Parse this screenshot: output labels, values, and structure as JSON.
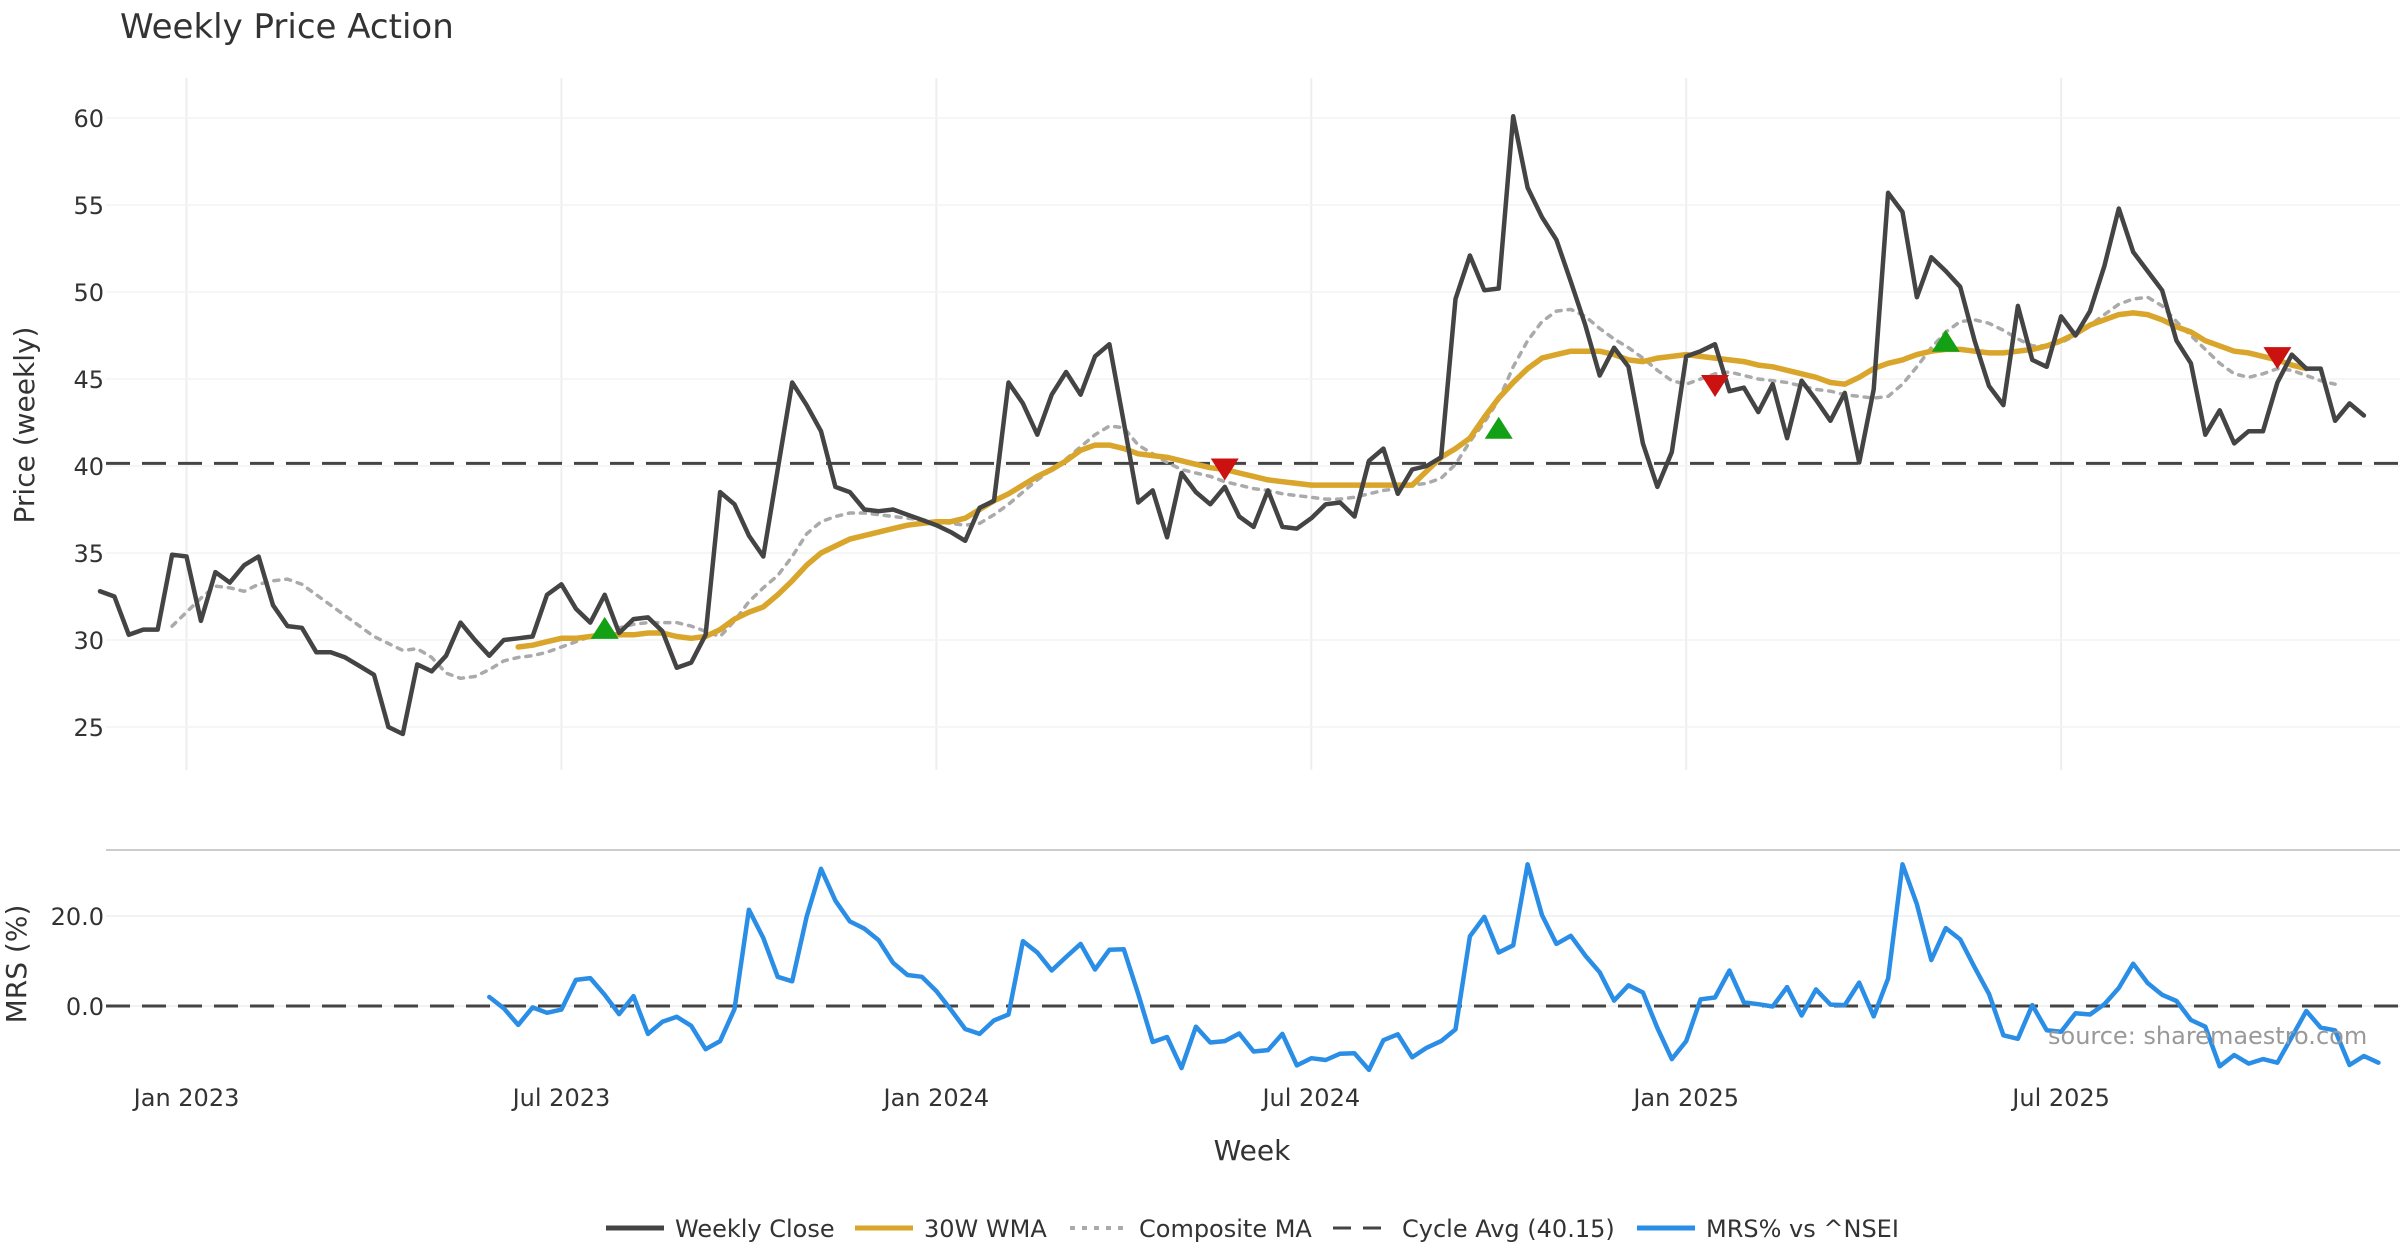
{
  "chart_data": {
    "type": "line",
    "title": "Weekly Price Action",
    "xlabel": "Week",
    "source": "source: sharemaestro.com",
    "x_ticks": [
      "Jan 2023",
      "Jul 2023",
      "Jan 2024",
      "Jul 2024",
      "Jan 2025",
      "Jul 2025"
    ],
    "panels": {
      "price": {
        "ylabel": "Price (weekly)",
        "ylim": [
          22.5,
          62
        ],
        "yticks": [
          "25",
          "30",
          "35",
          "40",
          "45",
          "50",
          "55",
          "60"
        ],
        "cycle_avg": 40.15,
        "series": [
          {
            "name": "Weekly Close",
            "color": "#444444",
            "start_week": 0,
            "values": [
              32.8,
              32.5,
              30.3,
              30.6,
              30.6,
              34.9,
              34.8,
              31.1,
              33.9,
              33.3,
              34.3,
              34.8,
              32.0,
              30.8,
              30.7,
              29.3,
              29.3,
              29.0,
              28.5,
              28.0,
              25.0,
              24.6,
              28.6,
              28.2,
              29.1,
              31.0,
              30.0,
              29.1,
              30.0,
              30.1,
              30.2,
              32.6,
              33.2,
              31.8,
              31.0,
              32.6,
              30.4,
              31.2,
              31.3,
              30.5,
              28.4,
              28.7,
              30.3,
              38.5,
              37.8,
              36.0,
              34.8,
              39.8,
              44.8,
              43.5,
              42.0,
              38.8,
              38.5,
              37.5,
              37.4,
              37.5,
              37.2,
              36.9,
              36.6,
              36.2,
              35.7,
              37.6,
              38.0,
              44.8,
              43.6,
              41.8,
              44.1,
              45.4,
              44.1,
              46.3,
              47.0,
              42.5,
              37.9,
              38.6,
              35.9,
              39.6,
              38.5,
              37.8,
              38.8,
              37.1,
              36.5,
              38.6,
              36.5,
              36.4,
              37.0,
              37.8,
              37.9,
              37.1,
              40.3,
              41.0,
              38.4,
              39.8,
              40.0,
              40.5,
              49.6,
              52.1,
              50.1,
              50.2,
              60.1,
              56.0,
              54.3,
              53.0,
              50.6,
              48.1,
              45.2,
              46.8,
              45.7,
              41.3,
              38.8,
              40.8,
              46.3,
              46.6,
              47.0,
              44.3,
              44.5,
              43.1,
              44.7,
              41.6,
              44.9,
              43.8,
              42.6,
              44.2,
              40.2,
              44.4,
              55.7,
              54.6,
              49.7,
              52.0,
              51.2,
              50.3,
              47.2,
              44.6,
              43.5,
              49.2,
              46.1,
              45.7,
              48.6,
              47.5,
              48.9,
              51.5,
              54.8,
              52.3,
              51.2,
              50.1,
              47.2,
              45.9,
              41.8,
              43.2,
              41.3,
              42.0,
              42.0,
              44.8,
              46.4,
              45.6,
              45.6,
              42.6,
              43.6,
              42.9
            ]
          },
          {
            "name": "30W WMA",
            "color": "#D9A52B",
            "start_week": 29,
            "values": [
              29.6,
              29.7,
              29.9,
              30.1,
              30.1,
              30.2,
              30.3,
              30.3,
              30.3,
              30.4,
              30.4,
              30.2,
              30.1,
              30.2,
              30.6,
              31.2,
              31.6,
              31.9,
              32.6,
              33.4,
              34.3,
              35.0,
              35.4,
              35.8,
              36.0,
              36.2,
              36.4,
              36.6,
              36.7,
              36.8,
              36.8,
              37.0,
              37.5,
              38.0,
              38.4,
              38.9,
              39.4,
              39.8,
              40.3,
              40.9,
              41.2,
              41.2,
              41.0,
              40.7,
              40.6,
              40.5,
              40.3,
              40.1,
              39.9,
              39.8,
              39.6,
              39.4,
              39.2,
              39.1,
              39.0,
              38.9,
              38.9,
              38.9,
              38.9,
              38.9,
              38.9,
              38.9,
              38.9,
              39.7,
              40.5,
              41.0,
              41.6,
              42.8,
              43.9,
              44.8,
              45.6,
              46.2,
              46.4,
              46.6,
              46.6,
              46.6,
              46.4,
              46.1,
              46.0,
              46.2,
              46.3,
              46.4,
              46.3,
              46.2,
              46.1,
              46.0,
              45.8,
              45.7,
              45.5,
              45.3,
              45.1,
              44.8,
              44.7,
              45.1,
              45.6,
              45.9,
              46.1,
              46.4,
              46.6,
              46.7,
              46.7,
              46.6,
              46.5,
              46.5,
              46.6,
              46.7,
              46.9,
              47.2,
              47.6,
              48.1,
              48.4,
              48.7,
              48.8,
              48.7,
              48.4,
              48.0,
              47.7,
              47.2,
              46.9,
              46.6,
              46.5,
              46.3,
              46.1,
              45.8,
              45.6
            ]
          },
          {
            "name": "Composite MA",
            "color": "#AAAAAA",
            "start_week": 5,
            "values": [
              30.8,
              31.6,
              32.4,
              33.1,
              33.0,
              32.8,
              33.2,
              33.4,
              33.5,
              33.2,
              32.6,
              32.0,
              31.4,
              30.8,
              30.2,
              29.8,
              29.4,
              29.5,
              29.0,
              28.1,
              27.8,
              27.9,
              28.3,
              28.8,
              29.0,
              29.1,
              29.3,
              29.6,
              29.9,
              30.2,
              30.5,
              30.7,
              30.9,
              31.0,
              31.0,
              31.0,
              30.8,
              30.5,
              30.2,
              31.1,
              32.2,
              33.0,
              33.7,
              34.8,
              36.1,
              36.8,
              37.1,
              37.3,
              37.3,
              37.2,
              37.1,
              37.0,
              36.9,
              36.8,
              36.7,
              36.6,
              36.7,
              37.2,
              37.8,
              38.5,
              39.2,
              39.8,
              40.4,
              41.1,
              41.8,
              42.3,
              42.2,
              41.2,
              40.7,
              40.2,
              39.8,
              39.6,
              39.4,
              39.1,
              38.9,
              38.7,
              38.6,
              38.4,
              38.3,
              38.2,
              38.1,
              38.1,
              38.2,
              38.4,
              38.6,
              38.7,
              38.9,
              39.0,
              39.3,
              40.1,
              41.4,
              42.5,
              43.8,
              45.7,
              47.2,
              48.3,
              48.9,
              49.0,
              48.6,
              47.9,
              47.3,
              46.8,
              46.2,
              45.5,
              44.9,
              44.7,
              45.0,
              45.3,
              45.4,
              45.2,
              45.0,
              44.9,
              44.8,
              44.6,
              44.4,
              44.3,
              44.1,
              44.0,
              43.9,
              44.0,
              44.7,
              45.7,
              46.8,
              47.7,
              48.3,
              48.4,
              48.2,
              47.8,
              47.3,
              46.9,
              46.9,
              47.1,
              47.5,
              48.1,
              48.7,
              49.3,
              49.6,
              49.7,
              49.2,
              48.3,
              47.5,
              46.7,
              45.9,
              45.3,
              45.1,
              45.3,
              45.6,
              45.5,
              45.2,
              44.9,
              44.7
            ]
          }
        ],
        "signals_up": [
          {
            "week": 35,
            "value": 30.7
          },
          {
            "week": 97,
            "value": 42.2
          },
          {
            "week": 128,
            "value": 47.2
          }
        ],
        "signals_down": [
          {
            "week": 78,
            "value": 39.8
          },
          {
            "week": 112,
            "value": 44.6
          },
          {
            "week": 151,
            "value": 46.2
          }
        ]
      },
      "mrs": {
        "ylabel": "MRS (%)",
        "ylim": [
          -17,
          36
        ],
        "yticks": [
          "0.0",
          "20.0"
        ],
        "zero_line": 0,
        "series": [
          {
            "name": "MRS% vs ^NSEI",
            "color": "#2A8EE6",
            "start_week": 27,
            "values": [
              2.0,
              -0.5,
              -4.2,
              -0.3,
              -1.5,
              -0.8,
              5.8,
              6.2,
              2.5,
              -1.8,
              2.2,
              -6.2,
              -3.5,
              -2.4,
              -4.4,
              -9.6,
              -7.8,
              -0.7,
              21.4,
              15.1,
              6.5,
              5.5,
              19.8,
              30.5,
              23.4,
              18.8,
              17.2,
              14.6,
              9.6,
              6.9,
              6.5,
              3.3,
              -0.8,
              -5.1,
              -6.2,
              -3.2,
              -1.9,
              14.4,
              11.9,
              7.9,
              10.9,
              13.8,
              8.1,
              12.5,
              12.6,
              2.7,
              -8.0,
              -6.9,
              -13.8,
              -4.6,
              -8.1,
              -7.8,
              -6.1,
              -10.1,
              -9.8,
              -6.2,
              -13.2,
              -11.6,
              -12.0,
              -10.6,
              -10.5,
              -14.2,
              -7.6,
              -6.3,
              -11.4,
              -9.3,
              -7.8,
              -5.2,
              15.5,
              19.8,
              11.9,
              13.5,
              31.5,
              20.2,
              13.8,
              15.6,
              11.2,
              7.5,
              1.2,
              4.6,
              3.0,
              -4.9,
              -11.8,
              -7.8,
              1.5,
              1.9,
              7.9,
              0.8,
              0.4,
              -0.1,
              4.2,
              -2.1,
              3.7,
              0.3,
              0.2,
              5.2,
              -2.3,
              6.1,
              31.5,
              22.6,
              10.2,
              17.3,
              14.8,
              8.6,
              2.7,
              -6.5,
              -7.3,
              0.2,
              -5.4,
              -5.7,
              -1.6,
              -1.9,
              0.4,
              4.0,
              9.4,
              5.1,
              2.5,
              1.1,
              -3.1,
              -4.6,
              -13.4,
              -10.9,
              -12.8,
              -11.8,
              -12.6,
              -6.9,
              -1.1,
              -4.8,
              -5.4,
              -13.1,
              -11.1,
              -12.6
            ]
          }
        ]
      }
    },
    "legend": [
      "Weekly Close",
      "30W WMA",
      "Composite MA",
      "Cycle Avg (40.15)",
      "MRS% vs ^NSEI"
    ]
  }
}
